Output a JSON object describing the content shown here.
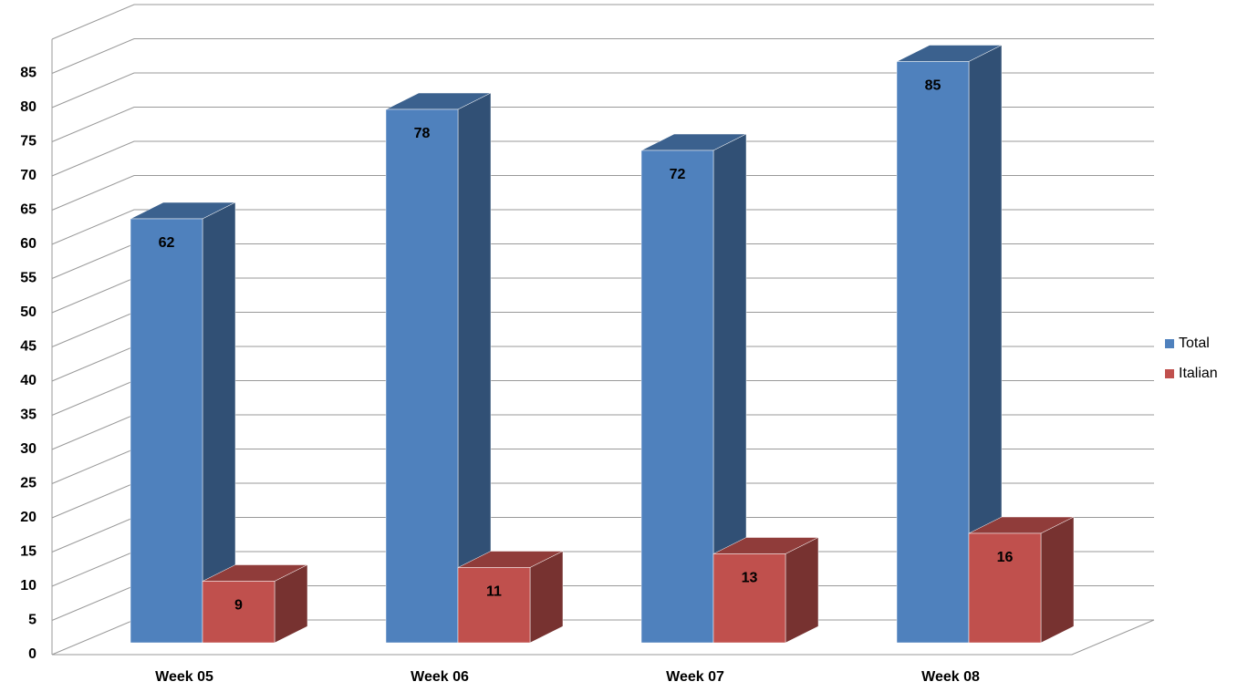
{
  "chart_data": {
    "type": "bar3d",
    "categories": [
      "Week 05",
      "Week 06",
      "Week 07",
      "Week 08"
    ],
    "series": [
      {
        "name": "Total",
        "color": "#4f81bd",
        "values": [
          62,
          78,
          72,
          85
        ]
      },
      {
        "name": "Italian",
        "color": "#c0504d",
        "values": [
          9,
          11,
          13,
          16
        ]
      }
    ],
    "ylim": [
      0,
      90
    ],
    "yticks": [
      0,
      5,
      10,
      15,
      20,
      25,
      30,
      35,
      40,
      45,
      50,
      55,
      60,
      65,
      70,
      75,
      80,
      85
    ],
    "grid": true,
    "legend": "right"
  }
}
